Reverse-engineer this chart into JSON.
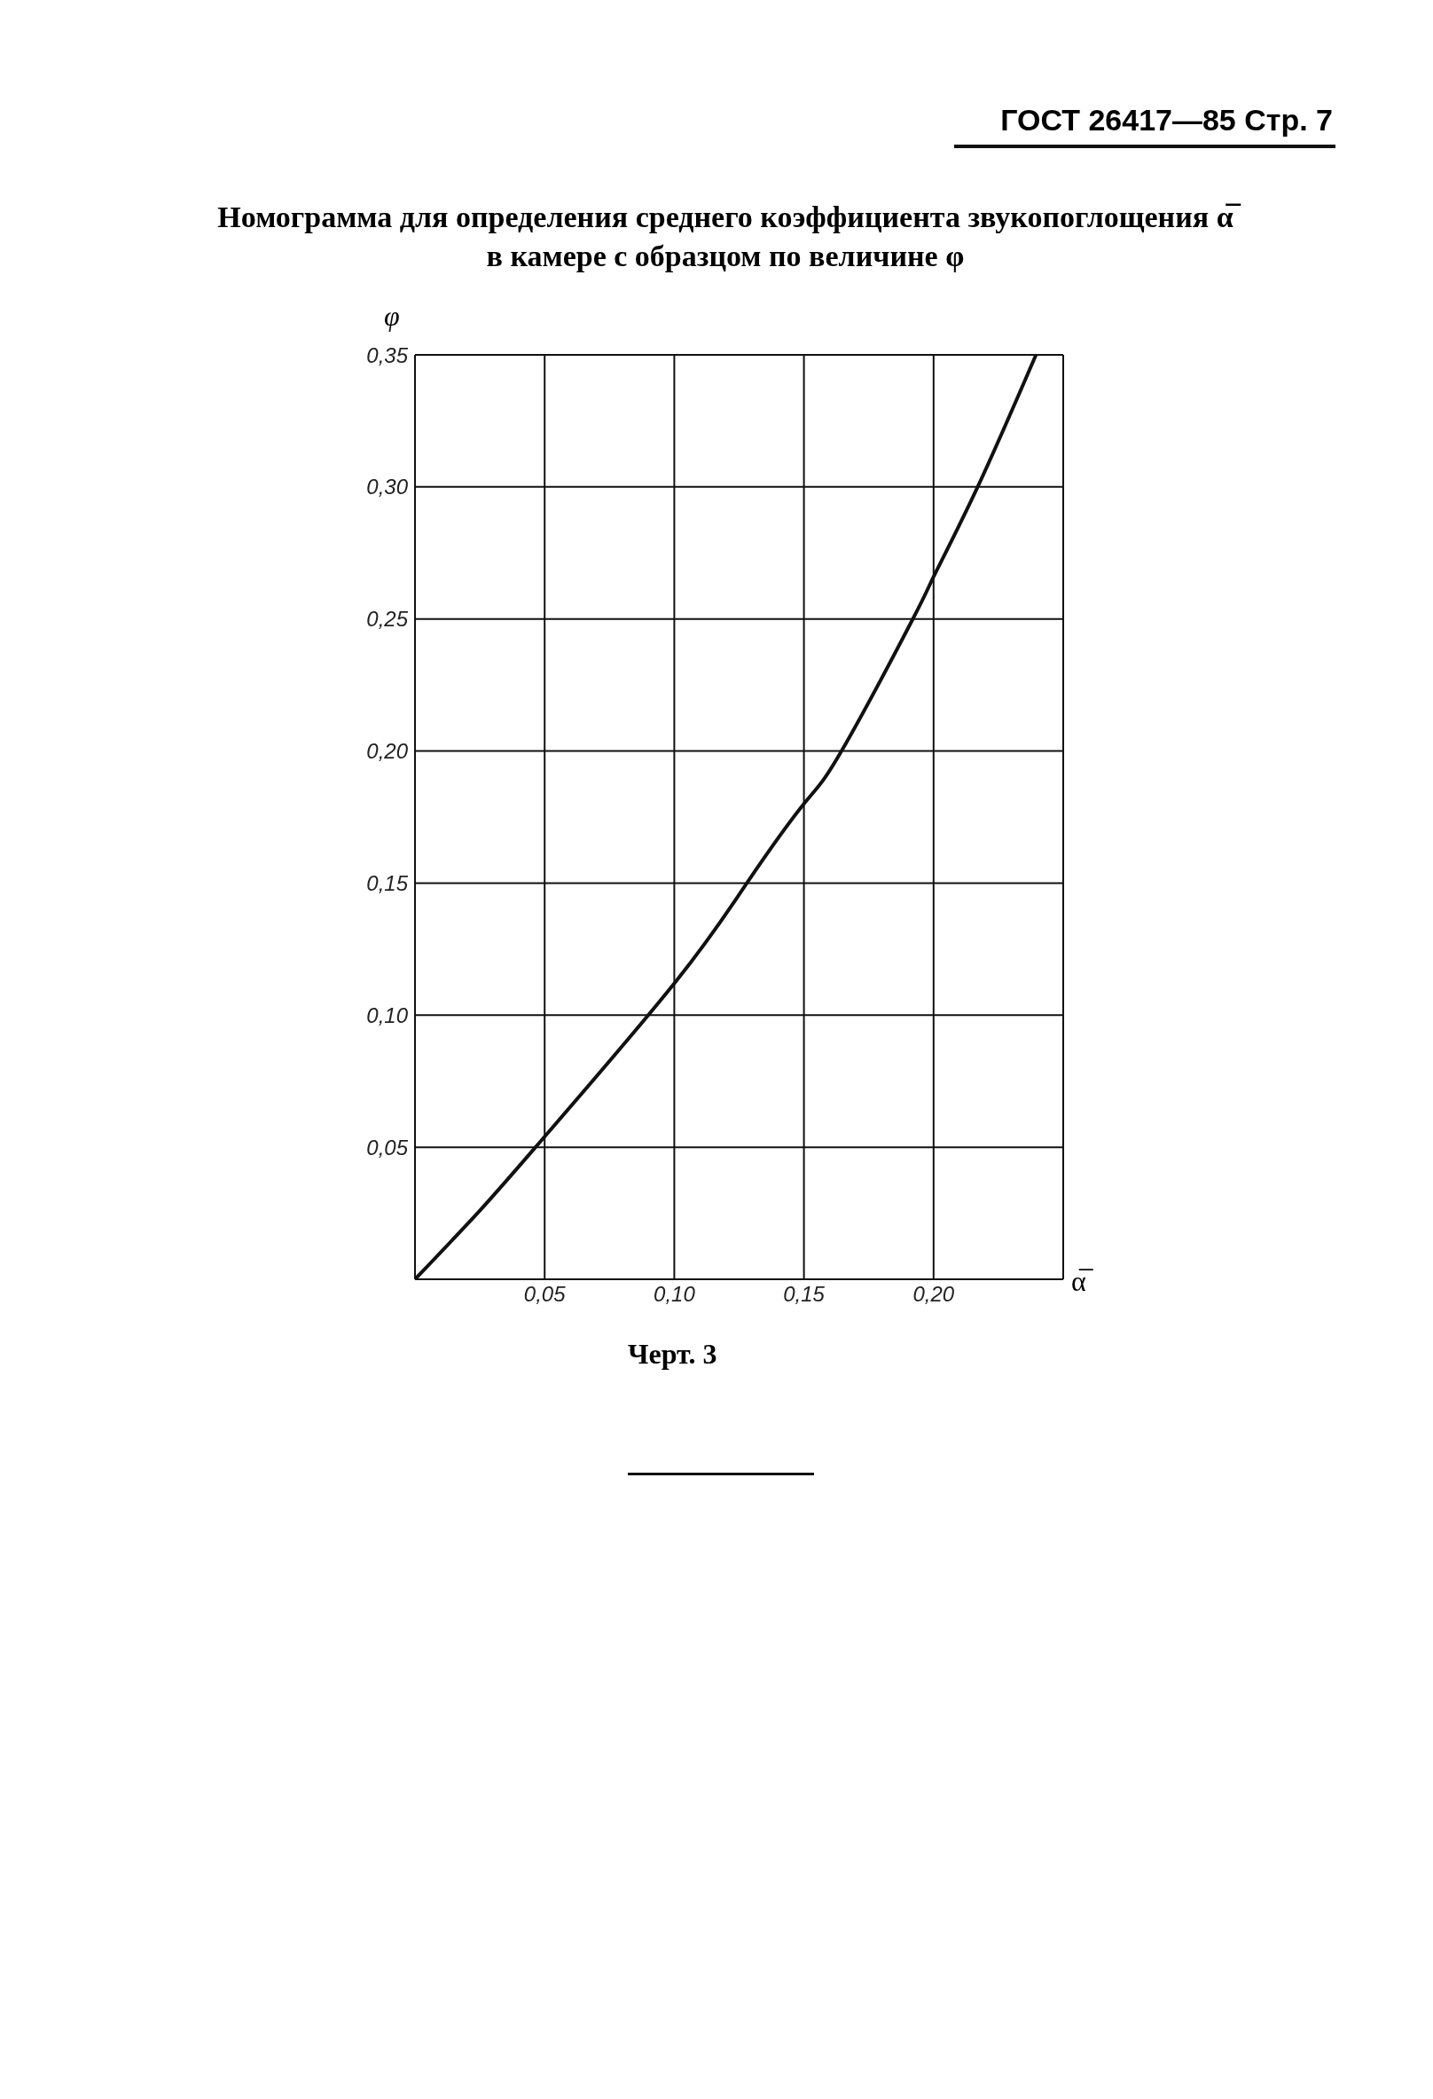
{
  "chart_data": {
    "type": "line",
    "title": "Номограмма для определения среднего коэффициента звукопоглощения α̅\nв камере с образцом по величине φ",
    "xlabel": "α̅",
    "ylabel": "φ",
    "annotations": [
      "ГОСТ 26417—85 Стр. 7",
      "Черт. 3"
    ],
    "x": [
      0,
      0.025,
      0.05,
      0.1,
      0.128,
      0.15,
      0.1645,
      0.192,
      0.2,
      0.217,
      0.2395
    ],
    "series": [
      {
        "color": "#111111",
        "values": [
          0,
          0.026,
          0.054,
          0.112,
          0.15,
          0.18,
          0.2,
          0.25,
          0.266,
          0.3,
          0.35
        ]
      }
    ],
    "xlim": [
      0,
      0.25
    ],
    "ylim": [
      0,
      0.35
    ],
    "xticks": [
      {
        "value": 0.05,
        "label": "0,05"
      },
      {
        "value": 0.1,
        "label": "0,10"
      },
      {
        "value": 0.15,
        "label": "0,15"
      },
      {
        "value": 0.2,
        "label": "0,20"
      }
    ],
    "yticks": [
      {
        "value": 0.05,
        "label": "0,05"
      },
      {
        "value": 0.1,
        "label": "0,10"
      },
      {
        "value": 0.15,
        "label": "0,15"
      },
      {
        "value": 0.2,
        "label": "0,20"
      },
      {
        "value": 0.25,
        "label": "0,25"
      },
      {
        "value": 0.3,
        "label": "0,30"
      },
      {
        "value": 0.35,
        "label": "0,35"
      }
    ],
    "grid": true,
    "marker": "none",
    "line_style": "solid"
  }
}
